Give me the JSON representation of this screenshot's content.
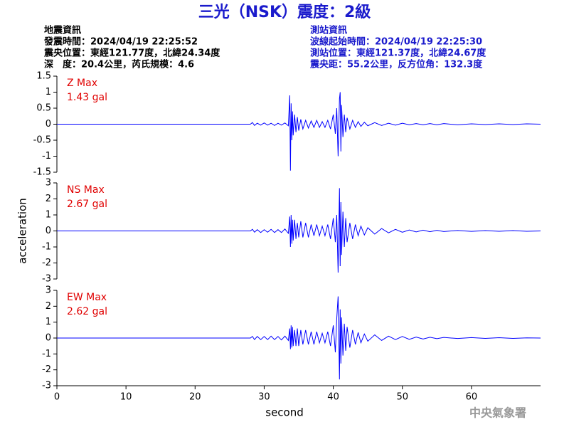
{
  "header": {
    "title": "三光（NSK）震度：2級",
    "left_lines": [
      "地震資訊",
      "發震時間：2024/04/19 22:25:52",
      "震央位置：東經121.77度，北緯24.34度",
      "深　度：20.4公里，芮氏規模：4.6"
    ],
    "right_lines": [
      "測站資訊",
      "波線起始時間：2024/04/19 22:25:30",
      "測站位置：東經121.37度，北緯24.67度",
      "震央距：55.2公里，反方位角：132.3度"
    ]
  },
  "watermark": "中央氣象署",
  "chart_data": [
    {
      "type": "line",
      "annotations": [
        "Z Max",
        "1.43 gal"
      ],
      "color": "#0000ff",
      "annotation_color": "#e00000",
      "xlim": [
        0,
        70
      ],
      "ylim": [
        -1.5,
        1.5
      ],
      "yticks": [
        -1.5,
        -1,
        -0.5,
        0,
        0.5,
        1,
        1.5
      ],
      "x": [
        0,
        28,
        28.3,
        28.6,
        29,
        29.5,
        30,
        30.5,
        31,
        31.5,
        32,
        32.5,
        33,
        33.5,
        33.7,
        33.8,
        33.9,
        34.0,
        34.1,
        34.2,
        34.4,
        34.6,
        34.8,
        35,
        35.3,
        35.6,
        36,
        36.4,
        36.8,
        37.2,
        37.6,
        38,
        38.4,
        38.8,
        39.2,
        39.6,
        40,
        40.3,
        40.5,
        40.7,
        40.9,
        41.0,
        41.1,
        41.2,
        41.4,
        41.6,
        41.8,
        42,
        42.4,
        42.8,
        43.2,
        43.6,
        44,
        44.5,
        45,
        46,
        47,
        48,
        49,
        50,
        51,
        52,
        53,
        54,
        55,
        56,
        58,
        60,
        62,
        64,
        66,
        68,
        70
      ],
      "values": [
        0,
        0,
        0.05,
        -0.04,
        0.03,
        -0.03,
        0.04,
        -0.03,
        0.03,
        -0.04,
        0.03,
        -0.03,
        0.04,
        -0.05,
        0.9,
        -1.45,
        0.65,
        -0.5,
        0.4,
        -0.35,
        0.3,
        -0.25,
        0.22,
        -0.2,
        0.15,
        -0.15,
        0.12,
        -0.12,
        0.1,
        -0.1,
        0.12,
        -0.1,
        0.08,
        -0.1,
        0.12,
        -0.15,
        0.3,
        -0.3,
        0.5,
        -1.0,
        0.8,
        1.0,
        -0.85,
        0.6,
        -0.4,
        0.3,
        -0.25,
        0.2,
        -0.15,
        0.12,
        -0.1,
        0.08,
        -0.07,
        0.06,
        -0.05,
        0.05,
        -0.04,
        0.03,
        -0.03,
        0.03,
        -0.02,
        0.02,
        -0.02,
        0.02,
        -0.02,
        0.02,
        -0.02,
        0.01,
        -0.01,
        0.01,
        -0.01,
        0.01,
        0
      ]
    },
    {
      "type": "line",
      "annotations": [
        "NS Max",
        "2.67 gal"
      ],
      "color": "#0000ff",
      "annotation_color": "#e00000",
      "ylabel": "acceleration",
      "xlim": [
        0,
        70
      ],
      "ylim": [
        -3,
        3
      ],
      "yticks": [
        -3,
        -2,
        -1,
        0,
        1,
        2,
        3
      ],
      "x": [
        0,
        28,
        28.3,
        28.6,
        29,
        29.5,
        30,
        30.5,
        31,
        31.5,
        32,
        32.5,
        33,
        33.5,
        33.7,
        33.8,
        33.9,
        34.0,
        34.1,
        34.2,
        34.4,
        34.6,
        34.8,
        35,
        35.3,
        35.6,
        36,
        36.4,
        36.8,
        37.2,
        37.6,
        38,
        38.4,
        38.8,
        39.2,
        39.6,
        40,
        40.3,
        40.5,
        40.7,
        40.9,
        41.0,
        41.1,
        41.2,
        41.4,
        41.6,
        41.8,
        42,
        42.4,
        42.8,
        43.2,
        43.6,
        44,
        44.5,
        45,
        46,
        47,
        48,
        49,
        50,
        51,
        52,
        53,
        54,
        55,
        56,
        58,
        60,
        62,
        64,
        66,
        68,
        70
      ],
      "values": [
        0,
        0,
        0.1,
        -0.08,
        0.08,
        -0.1,
        0.08,
        -0.08,
        0.1,
        -0.1,
        0.08,
        -0.1,
        0.12,
        -0.15,
        0.9,
        -1.0,
        1.0,
        -0.8,
        0.7,
        -0.6,
        0.7,
        -0.5,
        0.5,
        -0.4,
        0.6,
        -0.4,
        0.5,
        -0.4,
        0.4,
        -0.3,
        0.4,
        -0.3,
        0.3,
        -0.3,
        0.4,
        -0.5,
        0.8,
        -0.7,
        1.0,
        -2.6,
        2.67,
        -2.2,
        1.8,
        -1.5,
        1.2,
        -1.0,
        0.8,
        -0.7,
        0.5,
        -0.5,
        0.4,
        -0.3,
        0.3,
        -0.25,
        0.2,
        -0.2,
        0.15,
        -0.12,
        0.1,
        -0.08,
        0.06,
        -0.06,
        0.05,
        -0.05,
        0.04,
        -0.04,
        0.03,
        -0.03,
        0.02,
        -0.02,
        0.02,
        -0.02,
        0
      ]
    },
    {
      "type": "line",
      "annotations": [
        "EW Max",
        "2.62 gal"
      ],
      "color": "#0000ff",
      "annotation_color": "#e00000",
      "xlabel": "second",
      "xlim": [
        0,
        70
      ],
      "xticks": [
        0,
        10,
        20,
        30,
        40,
        50,
        60
      ],
      "ylim": [
        -3,
        3
      ],
      "yticks": [
        -3,
        -2,
        -1,
        0,
        1,
        2,
        3
      ],
      "x": [
        0,
        28,
        28.3,
        28.6,
        29,
        29.5,
        30,
        30.5,
        31,
        31.5,
        32,
        32.5,
        33,
        33.5,
        33.7,
        33.8,
        33.9,
        34.0,
        34.1,
        34.2,
        34.4,
        34.6,
        34.8,
        35,
        35.3,
        35.6,
        36,
        36.4,
        36.8,
        37.2,
        37.6,
        38,
        38.4,
        38.8,
        39.2,
        39.6,
        40,
        40.3,
        40.5,
        40.7,
        40.9,
        41.0,
        41.1,
        41.2,
        41.4,
        41.6,
        41.8,
        42,
        42.4,
        42.8,
        43.2,
        43.6,
        44,
        44.5,
        45,
        46,
        47,
        48,
        49,
        50,
        51,
        52,
        53,
        54,
        55,
        56,
        58,
        60,
        62,
        64,
        66,
        68,
        70
      ],
      "values": [
        0,
        0,
        0.1,
        -0.1,
        0.1,
        -0.1,
        0.1,
        -0.1,
        0.12,
        -0.1,
        0.1,
        -0.12,
        0.12,
        -0.15,
        0.6,
        -0.7,
        0.8,
        -0.6,
        0.7,
        -0.5,
        0.5,
        -0.5,
        0.6,
        -0.5,
        0.5,
        -0.4,
        0.5,
        -0.4,
        0.4,
        -0.4,
        0.4,
        -0.3,
        0.3,
        -0.3,
        0.4,
        -0.5,
        0.8,
        -0.9,
        1.2,
        2.62,
        -2.6,
        1.8,
        -1.6,
        1.3,
        -1.1,
        0.9,
        -0.8,
        0.7,
        -0.6,
        0.5,
        -0.4,
        0.35,
        -0.3,
        0.25,
        -0.2,
        0.2,
        -0.15,
        0.12,
        -0.1,
        0.1,
        -0.08,
        0.06,
        -0.06,
        0.05,
        -0.04,
        0.04,
        -0.03,
        0.03,
        -0.02,
        0.02,
        -0.02,
        0.01,
        0
      ]
    }
  ]
}
